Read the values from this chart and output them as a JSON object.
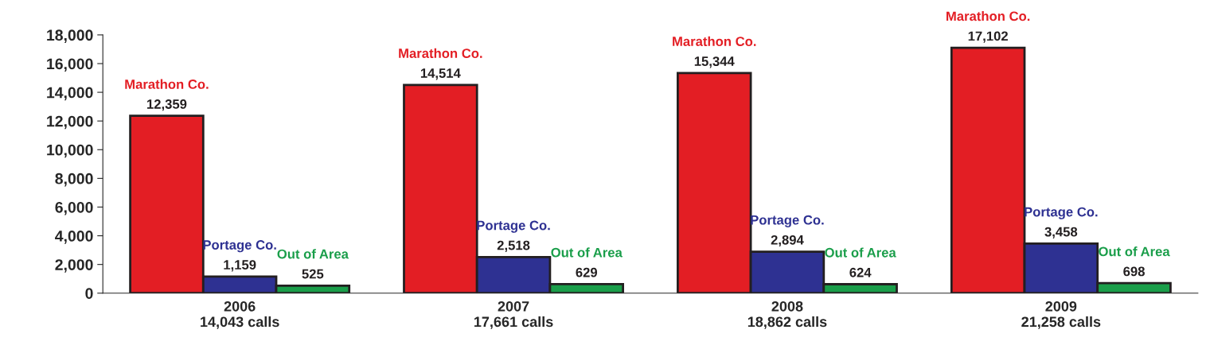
{
  "chart_data": {
    "type": "bar",
    "categories": [
      "2006\n14,043 calls",
      "2007\n17,661 calls",
      "2008\n18,862 calls",
      "2009\n21,258 calls"
    ],
    "series": [
      {
        "name": "Marathon Co.",
        "color": "#e31e24",
        "values": [
          12359,
          14514,
          15344,
          17102
        ],
        "value_labels": [
          "12,359",
          "14,514",
          "15,344",
          "17,102"
        ]
      },
      {
        "name": "Portage Co.",
        "color": "#2e3192",
        "values": [
          1159,
          2518,
          2894,
          3458
        ],
        "value_labels": [
          "1,159",
          "2,518",
          "2,894",
          "3,458"
        ]
      },
      {
        "name": "Out of Area",
        "color": "#1a9e4a",
        "values": [
          525,
          629,
          624,
          698
        ],
        "value_labels": [
          "525",
          "629",
          "624",
          "698"
        ]
      }
    ],
    "ylim": [
      0,
      18000
    ],
    "yticks": [
      0,
      {
        "value": 2000,
        "label": "2,000"
      },
      {
        "value": 4000,
        "label": "4,000"
      },
      {
        "value": 6000,
        "label": "6,000"
      },
      {
        "value": 8000,
        "label": "8,000"
      },
      {
        "value": 10000,
        "label": "10,000"
      },
      {
        "value": 12000,
        "label": "12,000"
      },
      {
        "value": 14000,
        "label": "14,000"
      },
      {
        "value": 16000,
        "label": "16,000"
      },
      {
        "value": 18000,
        "label": "18,000"
      }
    ],
    "grid": false,
    "legend": false
  }
}
